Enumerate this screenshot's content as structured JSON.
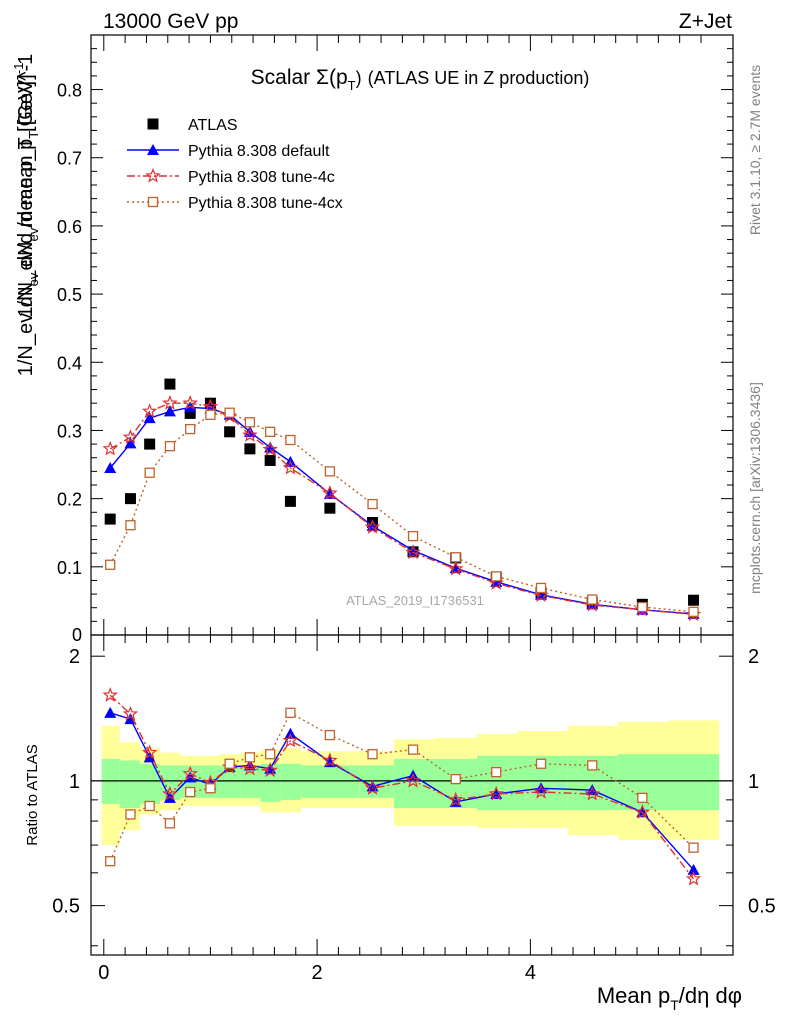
{
  "header": {
    "left": "13000 GeV pp",
    "right": "Z+Jet"
  },
  "side_text": {
    "rivet": "Rivet 3.1.10, ≥ 2.7M events",
    "mcplots": "mcplots.cern.ch [arXiv:1306.3436]"
  },
  "chart_data": [
    {
      "type": "scatter",
      "title_main": "Scalar Σ(p",
      "title_sub": "T",
      "title_close": ")",
      "title_rest": "(ATLAS UE in Z production)",
      "watermark": "ATLAS_2019_I1736531",
      "ylabel": "1/N_ev dN_ev/d mean p_T [GeV]^-1",
      "ylim": [
        0,
        0.88
      ],
      "y_ticks": [
        0.1,
        0.2,
        0.3,
        0.4,
        0.5,
        0.6,
        0.7,
        0.8
      ],
      "y_tick_labels": [
        "0.1",
        "0.2",
        "0.3",
        "0.4",
        "0.5",
        "0.6",
        "0.7",
        "0.8"
      ],
      "y_zero_label": "0",
      "xlim": [
        -0.12,
        5.9
      ],
      "legend_position": "top-left",
      "series": [
        {
          "name": "ATLAS",
          "color": "#000000",
          "marker": "square",
          "x": [
            0.06,
            0.25,
            0.43,
            0.62,
            0.81,
            1.0,
            1.18,
            1.37,
            1.56,
            1.75,
            2.12,
            2.52,
            2.9,
            3.3,
            3.68,
            4.1,
            4.58,
            5.05,
            5.53
          ],
          "y": [
            0.17,
            0.2,
            0.28,
            0.368,
            0.325,
            0.34,
            0.298,
            0.273,
            0.256,
            0.196,
            0.186,
            0.165,
            0.122,
            0.113,
            0.085,
            0.062,
            0.048,
            0.045,
            0.051
          ]
        },
        {
          "name": "Pythia 8.308 default",
          "color": "#0000ff",
          "marker": "triangle",
          "dash": "",
          "x": [
            0.06,
            0.25,
            0.43,
            0.62,
            0.81,
            1.0,
            1.18,
            1.37,
            1.56,
            1.75,
            2.12,
            2.52,
            2.9,
            3.3,
            3.68,
            4.1,
            4.58,
            5.05,
            5.53
          ],
          "y": [
            0.245,
            0.281,
            0.318,
            0.328,
            0.334,
            0.332,
            0.323,
            0.298,
            0.275,
            0.254,
            0.207,
            0.16,
            0.124,
            0.098,
            0.078,
            0.059,
            0.045,
            0.037,
            0.031
          ]
        },
        {
          "name": "Pythia 8.308 tune-4c",
          "color": "#e03030",
          "marker": "star",
          "dash": "8,3,2,3",
          "x": [
            0.06,
            0.25,
            0.43,
            0.62,
            0.81,
            1.0,
            1.18,
            1.37,
            1.56,
            1.75,
            2.12,
            2.52,
            2.9,
            3.3,
            3.68,
            4.1,
            4.58,
            5.05,
            5.53
          ],
          "y": [
            0.273,
            0.29,
            0.328,
            0.34,
            0.34,
            0.335,
            0.321,
            0.293,
            0.272,
            0.245,
            0.208,
            0.158,
            0.121,
            0.097,
            0.076,
            0.058,
            0.044,
            0.037,
            0.03
          ]
        },
        {
          "name": "Pythia 8.308 tune-4cx",
          "color": "#c0622a",
          "marker": "open-square",
          "dash": "2,3",
          "x": [
            0.06,
            0.25,
            0.43,
            0.62,
            0.81,
            1.0,
            1.18,
            1.37,
            1.56,
            1.75,
            2.12,
            2.52,
            2.9,
            3.3,
            3.68,
            4.1,
            4.58,
            5.05,
            5.53
          ],
          "y": [
            0.103,
            0.161,
            0.238,
            0.277,
            0.302,
            0.323,
            0.326,
            0.312,
            0.298,
            0.286,
            0.24,
            0.192,
            0.145,
            0.114,
            0.086,
            0.069,
            0.052,
            0.041,
            0.034
          ]
        }
      ]
    },
    {
      "type": "line",
      "ylabel": "Ratio to ATLAS",
      "xlabel_main": "Mean p",
      "xlabel_sub": "T",
      "xlabel_rest": "/dη dφ",
      "ylim": [
        0.38,
        2.25
      ],
      "xlim": [
        -0.12,
        5.9
      ],
      "y_ticks": [
        0.5,
        1,
        2
      ],
      "y_tick_labels": [
        "0.5",
        "1",
        "2"
      ],
      "x_ticks": [
        0,
        2,
        4
      ],
      "x_tick_labels": [
        "0",
        "2",
        "4"
      ],
      "reference": 1,
      "band_edges": [
        -0.02,
        0.15,
        0.34,
        0.53,
        0.72,
        0.91,
        1.09,
        1.28,
        1.47,
        1.66,
        1.85,
        2.4,
        2.72,
        3.1,
        3.5,
        3.88,
        4.35,
        4.82,
        5.3,
        5.77
      ],
      "band_green": [
        [
          0.88,
          1.13
        ],
        [
          0.86,
          1.12
        ],
        [
          0.88,
          1.1
        ],
        [
          0.9,
          1.09
        ],
        [
          0.91,
          1.09
        ],
        [
          0.91,
          1.09
        ],
        [
          0.91,
          1.09
        ],
        [
          0.91,
          1.09
        ],
        [
          0.89,
          1.1
        ],
        [
          0.9,
          1.1
        ],
        [
          0.91,
          1.09
        ],
        [
          0.91,
          1.09
        ],
        [
          0.86,
          1.13
        ],
        [
          0.86,
          1.13
        ],
        [
          0.85,
          1.15
        ],
        [
          0.85,
          1.15
        ],
        [
          0.85,
          1.15
        ],
        [
          0.85,
          1.16
        ],
        [
          0.85,
          1.16
        ]
      ],
      "band_yellow": [
        [
          0.7,
          1.36
        ],
        [
          0.76,
          1.24
        ],
        [
          0.83,
          1.2
        ],
        [
          0.85,
          1.17
        ],
        [
          0.87,
          1.15
        ],
        [
          0.87,
          1.15
        ],
        [
          0.87,
          1.16
        ],
        [
          0.87,
          1.17
        ],
        [
          0.84,
          1.19
        ],
        [
          0.84,
          1.2
        ],
        [
          0.86,
          1.18
        ],
        [
          0.86,
          1.18
        ],
        [
          0.78,
          1.26
        ],
        [
          0.78,
          1.27
        ],
        [
          0.77,
          1.3
        ],
        [
          0.77,
          1.32
        ],
        [
          0.74,
          1.36
        ],
        [
          0.72,
          1.39
        ],
        [
          0.72,
          1.4
        ]
      ],
      "series": [
        {
          "name": "Pythia 8.308 default",
          "color": "#0000ff",
          "marker": "triangle",
          "dash": "",
          "x": [
            0.06,
            0.25,
            0.43,
            0.62,
            0.81,
            1.0,
            1.18,
            1.37,
            1.56,
            1.75,
            2.12,
            2.52,
            2.9,
            3.3,
            3.68,
            4.1,
            4.58,
            5.05,
            5.53
          ],
          "y": [
            1.46,
            1.41,
            1.14,
            0.91,
            1.02,
            0.98,
            1.08,
            1.09,
            1.07,
            1.3,
            1.11,
            0.97,
            1.03,
            0.89,
            0.93,
            0.96,
            0.95,
            0.84,
            0.61
          ]
        },
        {
          "name": "Pythia 8.308 tune-4c",
          "color": "#e03030",
          "marker": "star",
          "dash": "8,3,2,3",
          "x": [
            0.06,
            0.25,
            0.43,
            0.62,
            0.81,
            1.0,
            1.18,
            1.37,
            1.56,
            1.75,
            2.12,
            2.52,
            2.9,
            3.3,
            3.68,
            4.1,
            4.58,
            5.05,
            5.53
          ],
          "y": [
            1.61,
            1.45,
            1.17,
            0.93,
            1.04,
            0.99,
            1.08,
            1.07,
            1.06,
            1.25,
            1.12,
            0.96,
            1.0,
            0.9,
            0.93,
            0.94,
            0.93,
            0.84,
            0.58
          ]
        },
        {
          "name": "Pythia 8.308 tune-4cx",
          "color": "#c0622a",
          "marker": "open-square",
          "dash": "2,3",
          "x": [
            0.06,
            0.25,
            0.43,
            0.62,
            0.81,
            1.0,
            1.18,
            1.37,
            1.56,
            1.75,
            2.12,
            2.52,
            2.9,
            3.3,
            3.68,
            4.1,
            4.58,
            5.05,
            5.53
          ],
          "y": [
            0.64,
            0.83,
            0.87,
            0.79,
            0.94,
            0.96,
            1.1,
            1.14,
            1.16,
            1.46,
            1.29,
            1.16,
            1.19,
            1.01,
            1.05,
            1.1,
            1.09,
            0.91,
            0.69
          ]
        }
      ]
    }
  ]
}
